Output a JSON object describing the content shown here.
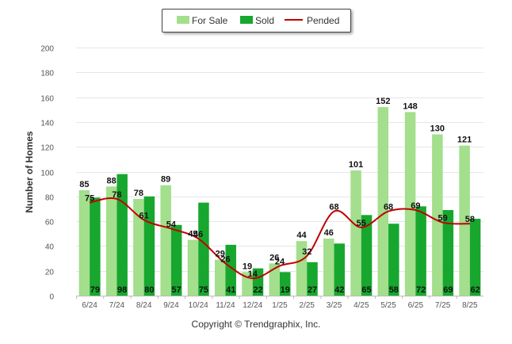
{
  "colors": {
    "for_sale": "#a3df8c",
    "sold": "#17a72e",
    "pended": "#c00000",
    "grid": "#e6e6e6",
    "axis_text": "#555555"
  },
  "copyright": "Copyright © Trendgraphix, Inc.",
  "chart_data": {
    "type": "bar",
    "ylabel": "Number of Homes",
    "ylim": [
      0,
      200
    ],
    "yticks": [
      0,
      20,
      40,
      60,
      80,
      100,
      120,
      140,
      160,
      180,
      200
    ],
    "grid": true,
    "legend_position": "top-center",
    "categories": [
      "6/24",
      "7/24",
      "8/24",
      "9/24",
      "10/24",
      "11/24",
      "12/24",
      "1/25",
      "2/25",
      "3/25",
      "4/25",
      "5/25",
      "6/25",
      "7/25",
      "8/25"
    ],
    "series": [
      {
        "name": "For Sale",
        "kind": "bar",
        "values": [
          85,
          88,
          78,
          89,
          45,
          29,
          19,
          26,
          44,
          46,
          101,
          152,
          148,
          130,
          121
        ]
      },
      {
        "name": "Sold",
        "kind": "bar",
        "values": [
          79,
          98,
          80,
          57,
          75,
          41,
          22,
          19,
          27,
          42,
          65,
          58,
          72,
          69,
          62
        ]
      },
      {
        "name": "Pended",
        "kind": "line",
        "values": [
          75,
          78,
          61,
          54,
          46,
          26,
          14,
          24,
          32,
          68,
          55,
          68,
          69,
          59,
          58
        ]
      }
    ]
  }
}
